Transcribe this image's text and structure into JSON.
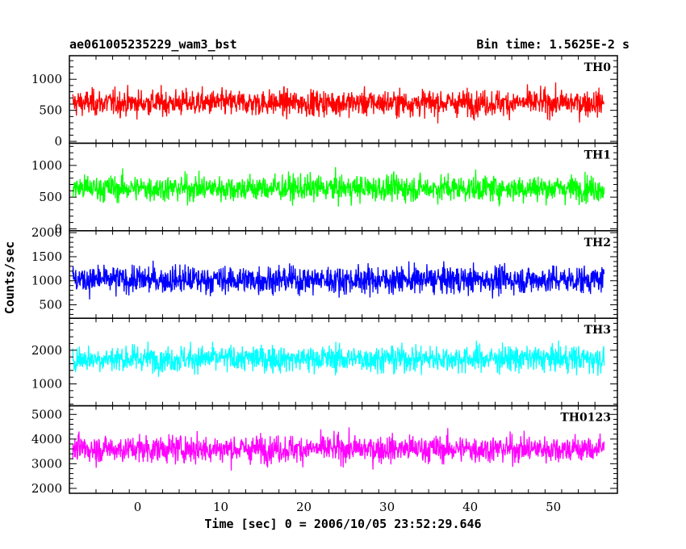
{
  "chart_data": {
    "type": "line",
    "title_left": "ae061005235229_wam3_bst",
    "title_right": "Bin time: 1.5625E-2 s",
    "xlabel": "Time [sec] 0 = 2006/10/05 23:52:29.646",
    "ylabel": "Counts/sec",
    "xlim": [
      -8.2,
      57.7
    ],
    "x_ticks": [
      0,
      10,
      20,
      30,
      40,
      50
    ],
    "x_tick_labels": [
      "0",
      "10",
      "20",
      "30",
      "40",
      "50"
    ],
    "data_x_range": [
      -7.8,
      56.1
    ],
    "panels": [
      {
        "name": "TH0",
        "color": "#ff0000",
        "ylim": [
          -30,
          1380
        ],
        "y_ticks": [
          0,
          500,
          1000
        ],
        "y_tick_labels": [
          "0",
          "500",
          "1000"
        ],
        "mean": 620,
        "range": [
          60,
          1380
        ]
      },
      {
        "name": "TH1",
        "color": "#00ff00",
        "ylim": [
          -30,
          1350
        ],
        "y_ticks": [
          0,
          500,
          1000
        ],
        "y_tick_labels": [
          "0",
          "500",
          "1000"
        ],
        "mean": 640,
        "range": [
          40,
          1350
        ]
      },
      {
        "name": "TH2",
        "color": "#0000ff",
        "ylim": [
          220,
          2040
        ],
        "y_ticks": [
          500,
          1000,
          1500,
          2000
        ],
        "y_tick_labels": [
          "500",
          "1000",
          "1500",
          "2000"
        ],
        "mean": 1020,
        "range": [
          220,
          2040
        ]
      },
      {
        "name": "TH3",
        "color": "#00ffff",
        "ylim": [
          350,
          2950
        ],
        "y_ticks": [
          1000,
          2000
        ],
        "y_tick_labels": [
          "1000",
          "2000"
        ],
        "mean": 1750,
        "range": [
          450,
          2950
        ]
      },
      {
        "name": "TH0123",
        "color": "#ff00ff",
        "ylim": [
          1800,
          5350
        ],
        "y_ticks": [
          2000,
          3000,
          4000,
          5000
        ],
        "y_tick_labels": [
          "2000",
          "3000",
          "4000",
          "5000"
        ],
        "mean": 3600,
        "range": [
          1850,
          5350
        ]
      }
    ],
    "grid": false,
    "legend": "panel labels top-right"
  }
}
